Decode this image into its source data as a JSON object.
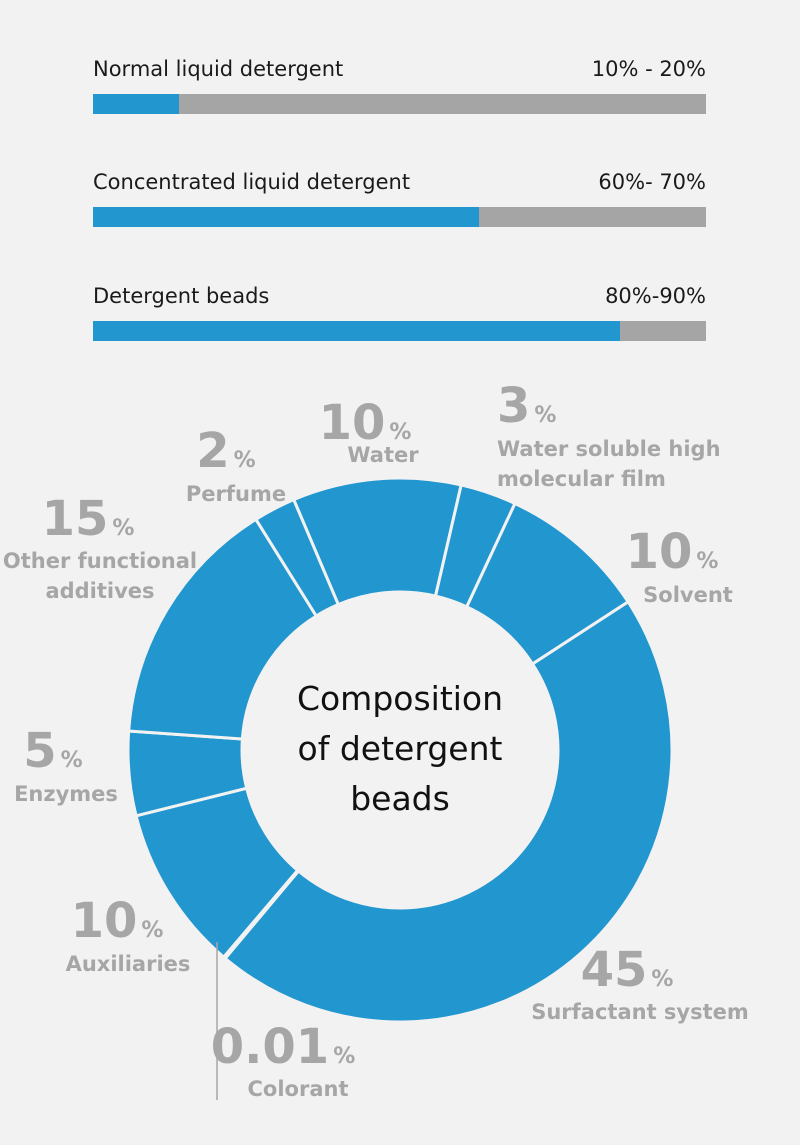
{
  "bars": [
    {
      "label": "Normal liquid detergent",
      "range": "10% - 20%",
      "fill": 0.14
    },
    {
      "label": "Concentrated liquid detergent",
      "range": "60%- 70%",
      "fill": 0.63
    },
    {
      "label": "Detergent beads",
      "range": "80%-90%",
      "fill": 0.86
    }
  ],
  "colors": {
    "accent": "#2196cf",
    "track": "#a5a5a5",
    "label": "#a6a6a6"
  },
  "chart_data": {
    "type": "pie",
    "title_lines": [
      "Composition",
      "of detergent",
      "beads"
    ],
    "slices": [
      {
        "label_lines": [
          "Water"
        ],
        "value": 10,
        "display": "10"
      },
      {
        "label_lines": [
          "Water soluble high",
          "molecular film"
        ],
        "value": 3,
        "display": "3"
      },
      {
        "label_lines": [
          "Solvent"
        ],
        "value": 10,
        "display": "10"
      },
      {
        "label_lines": [
          "Surfactant system"
        ],
        "value": 45,
        "display": "45"
      },
      {
        "label_lines": [
          "Colorant"
        ],
        "value": 0.01,
        "display": "0.01"
      },
      {
        "label_lines": [
          "Auxiliaries"
        ],
        "value": 10,
        "display": "10"
      },
      {
        "label_lines": [
          "Enzymes"
        ],
        "value": 5,
        "display": "5"
      },
      {
        "label_lines": [
          "Other functional",
          "additives"
        ],
        "value": 15,
        "display": "15"
      },
      {
        "label_lines": [
          "Perfume"
        ],
        "value": 2,
        "display": "2"
      }
    ],
    "percent_sign": "%"
  }
}
